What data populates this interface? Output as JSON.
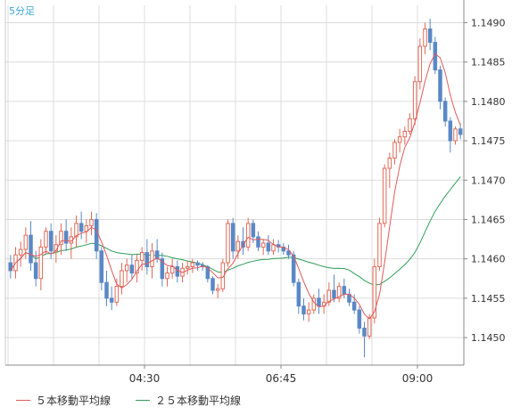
{
  "chart_data": {
    "type": "candlestick",
    "timeframe_label": "5分足",
    "y_ticks": [
      "1.1450",
      "1.1455",
      "1.1460",
      "1.1465",
      "1.1470",
      "1.1475",
      "1.1480",
      "1.1485",
      "1.1490"
    ],
    "x_ticks": [
      "04:30",
      "06:45",
      "09:00"
    ],
    "ylim": [
      1.14465,
      1.14922
    ],
    "grid": true,
    "legend_position": "bottom",
    "colors": {
      "up": "#e06b59",
      "down": "#5a88c6",
      "ma5": "#e05a5a",
      "ma25": "#2f9e57",
      "grid": "#dcdcdc",
      "axis": "#888888",
      "label": "#333333",
      "timeframe": "#3aa6d8"
    },
    "series": [
      {
        "name": "５本移動平均線",
        "color": "#e05a5a"
      },
      {
        "name": "２５本移動平均線",
        "color": "#2f9e57"
      }
    ],
    "candles": [
      [
        1.14595,
        1.14605,
        1.14575,
        1.14585
      ],
      [
        1.14585,
        1.14615,
        1.14575,
        1.14605
      ],
      [
        1.14605,
        1.14622,
        1.1459,
        1.14612
      ],
      [
        1.14612,
        1.1464,
        1.146,
        1.1463
      ],
      [
        1.1463,
        1.14648,
        1.14585,
        1.14595
      ],
      [
        1.14595,
        1.1461,
        1.14565,
        1.14575
      ],
      [
        1.14575,
        1.14625,
        1.1456,
        1.14615
      ],
      [
        1.14615,
        1.1464,
        1.14605,
        1.14635
      ],
      [
        1.14635,
        1.14645,
        1.146,
        1.1461
      ],
      [
        1.1461,
        1.1463,
        1.14595,
        1.14618
      ],
      [
        1.14618,
        1.14645,
        1.14605,
        1.14635
      ],
      [
        1.14635,
        1.1465,
        1.1461,
        1.1462
      ],
      [
        1.1462,
        1.1464,
        1.146,
        1.14628
      ],
      [
        1.14628,
        1.14655,
        1.14615,
        1.14645
      ],
      [
        1.14645,
        1.1466,
        1.14625,
        1.14635
      ],
      [
        1.14635,
        1.1465,
        1.1462,
        1.14642
      ],
      [
        1.14642,
        1.1466,
        1.1463,
        1.1465
      ],
      [
        1.1465,
        1.14658,
        1.146,
        1.1461
      ],
      [
        1.1461,
        1.14615,
        1.1456,
        1.1457
      ],
      [
        1.1457,
        1.14585,
        1.1454,
        1.1455
      ],
      [
        1.1455,
        1.14565,
        1.14535,
        1.14545
      ],
      [
        1.14545,
        1.14575,
        1.1454,
        1.14565
      ],
      [
        1.14565,
        1.14595,
        1.14555,
        1.14585
      ],
      [
        1.14585,
        1.146,
        1.1457,
        1.14592
      ],
      [
        1.14592,
        1.14605,
        1.14575,
        1.14582
      ],
      [
        1.14582,
        1.14605,
        1.1457,
        1.14598
      ],
      [
        1.14598,
        1.14615,
        1.14585,
        1.14608
      ],
      [
        1.14608,
        1.14625,
        1.1458,
        1.1459
      ],
      [
        1.1459,
        1.1462,
        1.14575,
        1.1461
      ],
      [
        1.1461,
        1.14625,
        1.14595,
        1.146
      ],
      [
        1.146,
        1.14608,
        1.14565,
        1.14575
      ],
      [
        1.14575,
        1.1459,
        1.14565,
        1.14582
      ],
      [
        1.14582,
        1.146,
        1.14575,
        1.1459
      ],
      [
        1.1459,
        1.14598,
        1.1457,
        1.14578
      ],
      [
        1.14578,
        1.14595,
        1.1457,
        1.14588
      ],
      [
        1.14588,
        1.14598,
        1.1458,
        1.1459
      ],
      [
        1.1459,
        1.146,
        1.14582,
        1.14595
      ],
      [
        1.14595,
        1.14598,
        1.14585,
        1.14592
      ],
      [
        1.14592,
        1.14596,
        1.14585,
        1.1459
      ],
      [
        1.1459,
        1.14592,
        1.1457,
        1.14575
      ],
      [
        1.14575,
        1.14578,
        1.14555,
        1.1456
      ],
      [
        1.1456,
        1.14568,
        1.1455,
        1.14562
      ],
      [
        1.14562,
        1.146,
        1.14558,
        1.14595
      ],
      [
        1.14595,
        1.1465,
        1.1459,
        1.14645
      ],
      [
        1.14645,
        1.14652,
        1.146,
        1.1461
      ],
      [
        1.1461,
        1.1463,
        1.146,
        1.14622
      ],
      [
        1.14622,
        1.1464,
        1.14605,
        1.14615
      ],
      [
        1.14615,
        1.14652,
        1.1461,
        1.14645
      ],
      [
        1.14645,
        1.1465,
        1.1462,
        1.14628
      ],
      [
        1.14628,
        1.14635,
        1.1461,
        1.14615
      ],
      [
        1.14615,
        1.14625,
        1.14605,
        1.1462
      ],
      [
        1.1462,
        1.1463,
        1.14605,
        1.1461
      ],
      [
        1.1461,
        1.14625,
        1.14605,
        1.14618
      ],
      [
        1.14618,
        1.14624,
        1.14608,
        1.14615
      ],
      [
        1.14615,
        1.1462,
        1.14605,
        1.1461
      ],
      [
        1.1461,
        1.14618,
        1.146,
        1.14605
      ],
      [
        1.14605,
        1.1461,
        1.14565,
        1.1457
      ],
      [
        1.1457,
        1.14575,
        1.1453,
        1.1454
      ],
      [
        1.1454,
        1.1455,
        1.14522,
        1.1453
      ],
      [
        1.1453,
        1.14545,
        1.1452,
        1.14535
      ],
      [
        1.14535,
        1.14555,
        1.1453,
        1.1455
      ],
      [
        1.1455,
        1.14562,
        1.1453,
        1.1454
      ],
      [
        1.1454,
        1.14555,
        1.1453,
        1.14545
      ],
      [
        1.14545,
        1.1457,
        1.1454,
        1.1456
      ],
      [
        1.1456,
        1.1458,
        1.14545,
        1.1455
      ],
      [
        1.1455,
        1.1457,
        1.14545,
        1.14565
      ],
      [
        1.14565,
        1.14575,
        1.1455,
        1.14555
      ],
      [
        1.14555,
        1.14562,
        1.1454,
        1.14545
      ],
      [
        1.14545,
        1.14555,
        1.1453,
        1.14535
      ],
      [
        1.14535,
        1.1454,
        1.14505,
        1.14512
      ],
      [
        1.14512,
        1.1452,
        1.14475,
        1.14502
      ],
      [
        1.14502,
        1.1453,
        1.14498,
        1.14525
      ],
      [
        1.14525,
        1.146,
        1.14518,
        1.1459
      ],
      [
        1.1459,
        1.14652,
        1.14585,
        1.14645
      ],
      [
        1.14645,
        1.1472,
        1.1464,
        1.14715
      ],
      [
        1.14715,
        1.14735,
        1.1469,
        1.14728
      ],
      [
        1.14728,
        1.14752,
        1.1472,
        1.14748
      ],
      [
        1.14748,
        1.14765,
        1.14735,
        1.14755
      ],
      [
        1.14755,
        1.14768,
        1.14745,
        1.14762
      ],
      [
        1.14762,
        1.14785,
        1.14758,
        1.14778
      ],
      [
        1.14778,
        1.14832,
        1.1477,
        1.14825
      ],
      [
        1.14825,
        1.1488,
        1.14815,
        1.1487
      ],
      [
        1.1487,
        1.149,
        1.1486,
        1.14892
      ],
      [
        1.14892,
        1.14905,
        1.14865,
        1.14875
      ],
      [
        1.14875,
        1.14882,
        1.14835,
        1.1484
      ],
      [
        1.1484,
        1.14845,
        1.1479,
        1.148
      ],
      [
        1.148,
        1.14805,
        1.14768,
        1.14775
      ],
      [
        1.14775,
        1.1478,
        1.14735,
        1.1475
      ],
      [
        1.1475,
        1.14768,
        1.14745,
        1.14765
      ],
      [
        1.14765,
        1.14772,
        1.14752,
        1.14758
      ]
    ]
  }
}
